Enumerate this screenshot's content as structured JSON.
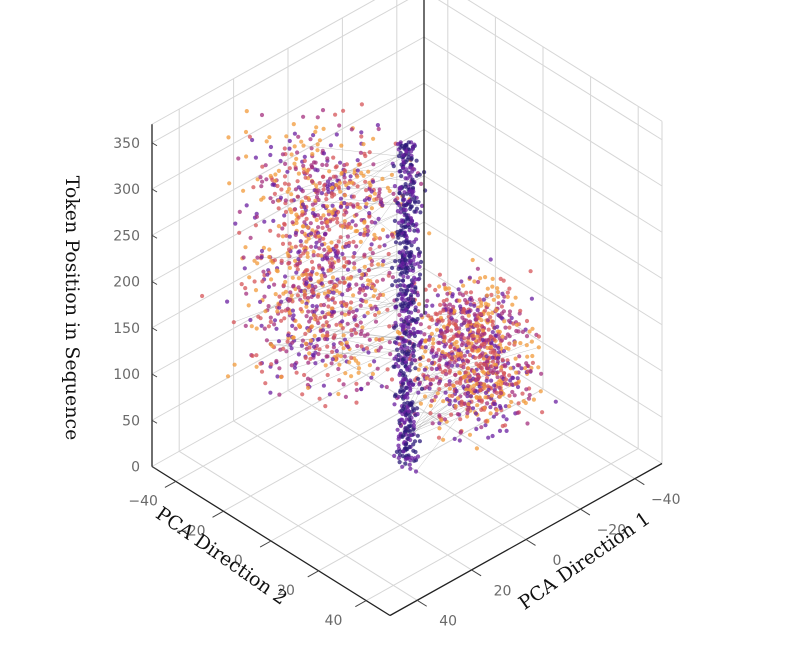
{
  "chart_data": {
    "type": "scatter",
    "projection": "3d",
    "title": "",
    "xlabel": "PCA Direction 1",
    "ylabel": "PCA Direction 2",
    "zlabel": "Token Position in Sequence",
    "xlim": [
      -50,
      50
    ],
    "ylim": [
      -50,
      50
    ],
    "zlim": [
      0,
      370
    ],
    "x_ticks": [
      "−40",
      "−20",
      "0",
      "20",
      "40"
    ],
    "y_ticks": [
      "−40",
      "−20",
      "0",
      "20",
      "40"
    ],
    "z_ticks": [
      "0",
      "50",
      "100",
      "150",
      "200",
      "250",
      "300",
      "350"
    ],
    "grid": true,
    "legend": "none",
    "colormap": [
      "#2c1b7a",
      "#6a1fa0",
      "#a4307f",
      "#d55458",
      "#f29a3a"
    ],
    "connecting_lines": true,
    "clusters": [
      {
        "name_hint": "",
        "center_x": -5,
        "center_y": -28,
        "z_range": [
          0,
          140
        ],
        "color_level": "mixed"
      },
      {
        "name_hint": "",
        "center_x": -6,
        "center_y": 25,
        "z_range": [
          130,
          360
        ],
        "color_level": "mixed"
      },
      {
        "name_hint": "",
        "center_x": 0,
        "center_y": 0,
        "z_range": [
          0,
          350
        ],
        "color_level": "dark"
      }
    ]
  }
}
